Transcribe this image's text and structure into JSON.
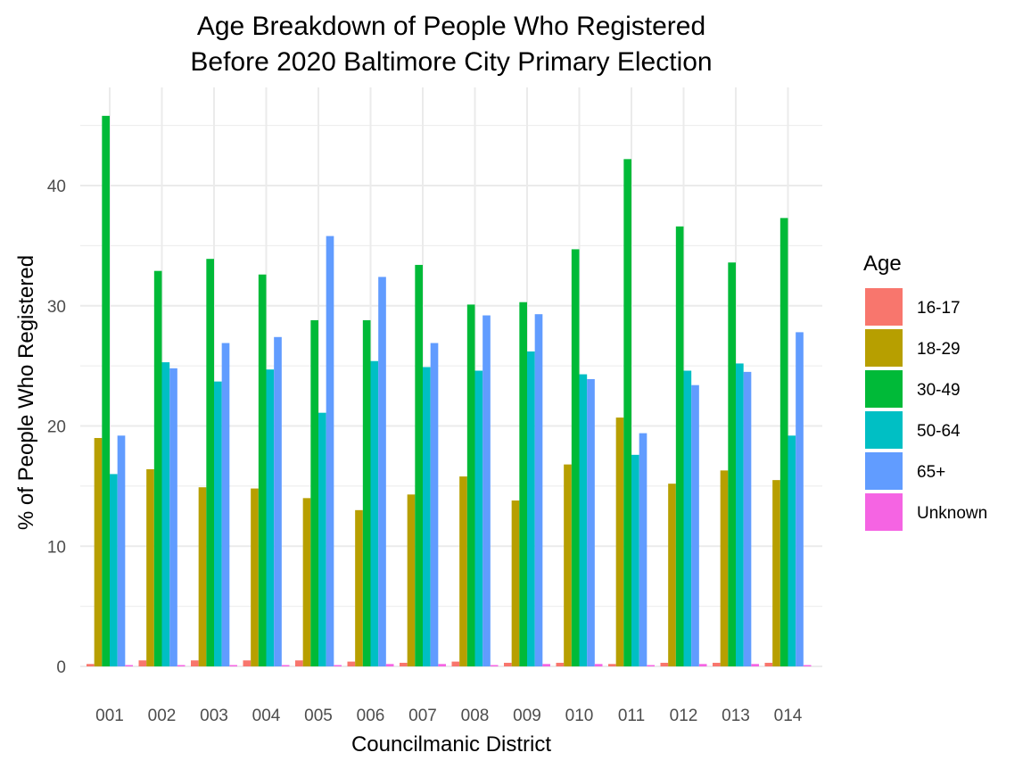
{
  "chart_data": {
    "type": "bar",
    "title_line1": "Age Breakdown of People Who Registered",
    "title_line2": "Before 2020 Baltimore City Primary Election",
    "xlabel": "Councilmanic District",
    "ylabel": "% of People Who Registered",
    "ylim": [
      0,
      46.5
    ],
    "y_ticks": [
      0,
      10,
      20,
      30,
      40
    ],
    "y_tick_labels": [
      "0",
      "10",
      "20",
      "30",
      "40"
    ],
    "grid": true,
    "legend_position": "right",
    "legend_title": "Age",
    "categories": [
      "001",
      "002",
      "003",
      "004",
      "005",
      "006",
      "007",
      "008",
      "009",
      "010",
      "011",
      "012",
      "013",
      "014"
    ],
    "series": [
      {
        "name": "16-17",
        "color": "#F8766D",
        "values": [
          0.2,
          0.5,
          0.5,
          0.5,
          0.5,
          0.4,
          0.3,
          0.4,
          0.3,
          0.3,
          0.2,
          0.3,
          0.3,
          0.3
        ]
      },
      {
        "name": "18-29",
        "color": "#B79F00",
        "values": [
          19.0,
          16.4,
          14.9,
          14.8,
          14.0,
          13.0,
          14.3,
          15.8,
          13.8,
          16.8,
          20.7,
          15.2,
          16.3,
          15.5
        ]
      },
      {
        "name": "30-49",
        "color": "#00BA38",
        "values": [
          45.8,
          32.9,
          33.9,
          32.6,
          28.8,
          28.8,
          33.4,
          30.1,
          30.3,
          34.7,
          42.2,
          36.6,
          33.6,
          37.3
        ]
      },
      {
        "name": "50-64",
        "color": "#00BFC4",
        "values": [
          16.0,
          25.3,
          23.7,
          24.7,
          21.1,
          25.4,
          24.9,
          24.6,
          26.2,
          24.3,
          17.6,
          24.6,
          25.2,
          19.2
        ]
      },
      {
        "name": "65+",
        "color": "#619CFF",
        "values": [
          19.2,
          24.8,
          26.9,
          27.4,
          35.8,
          32.4,
          26.9,
          29.2,
          29.3,
          23.9,
          19.4,
          23.4,
          24.5,
          27.8
        ]
      },
      {
        "name": "Unknown",
        "color": "#F564E3",
        "values": [
          0.1,
          0.1,
          0.1,
          0.1,
          0.1,
          0.2,
          0.2,
          0.1,
          0.2,
          0.2,
          0.1,
          0.2,
          0.2,
          0.1
        ]
      }
    ]
  }
}
